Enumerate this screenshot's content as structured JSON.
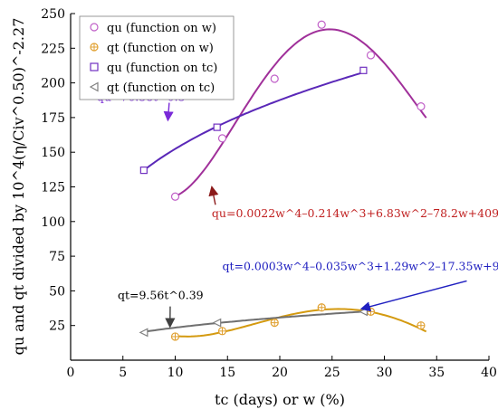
{
  "chart_data": {
    "type": "scatter",
    "xlabel": "tc (days) or w (%)",
    "ylabel": "qu and qt divided by 10^4(η/Civ^0.50)^-2.27",
    "xlim": [
      0,
      40
    ],
    "ylim": [
      0,
      250
    ],
    "xticks": [
      0,
      5,
      10,
      15,
      20,
      25,
      30,
      35,
      40
    ],
    "yticks": [
      25,
      50,
      75,
      100,
      125,
      150,
      175,
      200,
      225,
      250
    ],
    "grid": false,
    "legend_position": "top-left",
    "legend": [
      {
        "label": "qu (function on w)",
        "marker": "circle",
        "color": "#c060c8"
      },
      {
        "label": "qt (function on w)",
        "marker": "circle-plus",
        "color": "#e0a030"
      },
      {
        "label": "qu (function on tc)",
        "marker": "square",
        "color": "#7030c0"
      },
      {
        "label": "qt (function on  tc)",
        "marker": "triangle-left",
        "color": "#808080"
      }
    ],
    "series": [
      {
        "key": "qu_w",
        "marker": "circle",
        "color": "#c060c8",
        "points": [
          [
            10,
            118
          ],
          [
            14.5,
            160
          ],
          [
            19.5,
            203
          ],
          [
            24,
            242
          ],
          [
            28.7,
            220
          ],
          [
            33.5,
            183
          ]
        ],
        "fit": {
          "equation": "qu=0.0022w^4–0.214w^3+6.83w^2–78.2w+409.22",
          "coef": [
            0.0022,
            -0.214,
            6.83,
            -78.2,
            409.22
          ],
          "x_range": [
            10,
            34
          ],
          "color": "#a0309a"
        }
      },
      {
        "key": "qt_w",
        "marker": "circle-plus",
        "color": "#e0a030",
        "points": [
          [
            10,
            17
          ],
          [
            14.5,
            21
          ],
          [
            19.5,
            27
          ],
          [
            24,
            38
          ],
          [
            28.7,
            35
          ],
          [
            33.5,
            25
          ]
        ],
        "fit": {
          "equation": "qt=0.0003w^4–0.035w^3+1.29w^2–17.35w+94.02",
          "coef": [
            0.0003,
            -0.035,
            1.29,
            -17.35,
            94.02
          ],
          "x_range": [
            10,
            34
          ],
          "color": "#d49a10"
        }
      },
      {
        "key": "qu_tc",
        "marker": "square",
        "color": "#7030c0",
        "points": [
          [
            7,
            137
          ],
          [
            14,
            168
          ],
          [
            28,
            209
          ]
        ],
        "fit": {
          "equation": "qu=76.38t^0.3",
          "a": 76.38,
          "b": 0.3,
          "x_range": [
            7,
            28
          ],
          "color": "#5a28b8"
        }
      },
      {
        "key": "qt_tc",
        "marker": "triangle-left",
        "color": "#808080",
        "points": [
          [
            7,
            20
          ],
          [
            14,
            27
          ],
          [
            28,
            35
          ]
        ],
        "fit": {
          "equation": "qt=9.56t^0.39",
          "a": 9.56,
          "b": 0.39,
          "x_range": [
            7,
            28
          ],
          "color": "#707070"
        }
      }
    ],
    "annotations": [
      {
        "text": "qu=76.38t^0.3",
        "color": "#7a2ad8",
        "at": [
          2.5,
          187
        ],
        "arrow_to": [
          9.3,
          173
        ]
      },
      {
        "text": "qu=0.0022w^4–0.214w^3+6.83w^2–78.2w+409.22",
        "color": "#c02020",
        "at": [
          13.5,
          103
        ],
        "arrow_to": [
          13.5,
          125
        ]
      },
      {
        "text": "qt=0.0003w^4–0.035w^3+1.29w^2–17.35w+94.02",
        "color": "#2020c0",
        "at": [
          14.5,
          65
        ],
        "arrow_to": [
          27.8,
          37
        ]
      },
      {
        "text": "qt=9.56t^0.39",
        "color": "#000000",
        "at": [
          4.5,
          44
        ],
        "arrow_to": [
          9.5,
          24
        ]
      }
    ]
  }
}
